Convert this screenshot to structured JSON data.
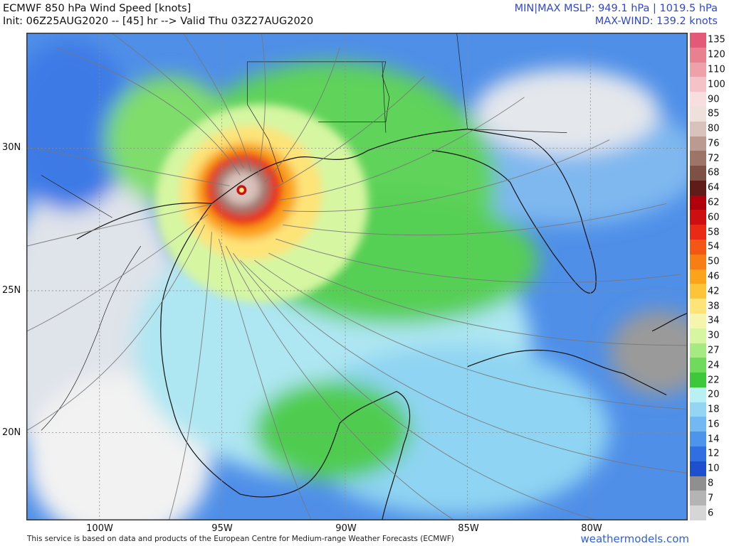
{
  "header": {
    "title": "ECMWF 850 hPa Wind Speed [knots]",
    "init": "Init: 06Z25AUG2020 -- [45] hr --> Valid Thu 03Z27AUG2020",
    "mslp": "MIN|MAX MSLP: 949.1 hPa | 1019.5 hPa",
    "max_wind": "MAX-WIND: 139.2 knots"
  },
  "axes": {
    "lat_labels": [
      "30N",
      "25N",
      "20N"
    ],
    "lon_labels": [
      "100W",
      "95W",
      "90W",
      "85W",
      "80W"
    ]
  },
  "colorbar": {
    "labels": [
      "135",
      "120",
      "110",
      "100",
      "90",
      "85",
      "80",
      "76",
      "72",
      "68",
      "64",
      "62",
      "60",
      "58",
      "54",
      "50",
      "46",
      "42",
      "38",
      "34",
      "30",
      "27",
      "24",
      "22",
      "20",
      "18",
      "16",
      "14",
      "12",
      "10",
      "8",
      "7",
      "6"
    ],
    "colors": [
      "#e35a78",
      "#e9808f",
      "#efa1aa",
      "#f4c2c7",
      "#f8dfdf",
      "#efe0dc",
      "#d9c2bc",
      "#bb9a92",
      "#9e7469",
      "#7e5046",
      "#601c18",
      "#b0000a",
      "#cf0e12",
      "#ea2a14",
      "#f45615",
      "#f87d12",
      "#fba31b",
      "#fdc43a",
      "#fde378",
      "#f6f5ae",
      "#d6f6a2",
      "#a5ea83",
      "#6fdb5d",
      "#3cc83a",
      "#b9f0f3",
      "#93d6f4",
      "#73b8f2",
      "#4d94ec",
      "#2f6fe2",
      "#1e4fcf",
      "#8f8f8f",
      "#b4b4b4",
      "#d6d6d6"
    ]
  },
  "footer": {
    "attribution": "This service is based on data and products of the European Centre for Medium-range Weather Forecasts (ECMWF)",
    "site": "weathermodels.com"
  }
}
